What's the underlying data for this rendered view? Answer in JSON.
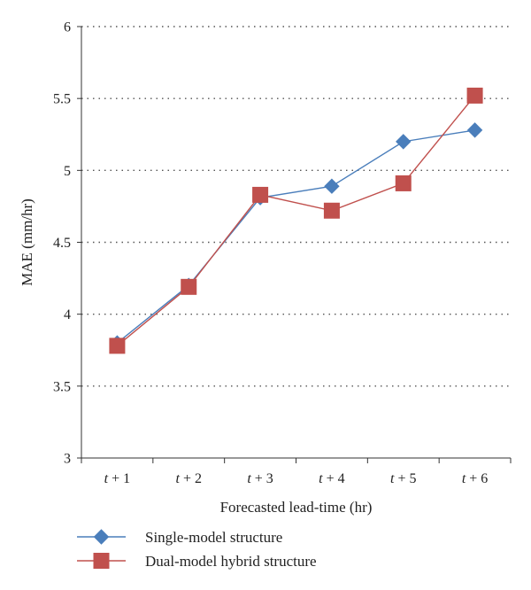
{
  "chart_data": {
    "type": "line",
    "categories": [
      "t + 1",
      "t + 2",
      "t + 3",
      "t + 4",
      "t + 5",
      "t + 6"
    ],
    "xlabel": "Forecasted lead-time (hr)",
    "ylabel": "MAE (mm/hr)",
    "ylim": [
      3,
      6
    ],
    "yticks": [
      "3",
      "3.5",
      "4",
      "4.5",
      "5",
      "5.5",
      "6"
    ],
    "grid": "horizontal dotted",
    "legend": "bottom-left",
    "series": [
      {
        "name": "Single-model structure",
        "marker": "diamond",
        "color": "#4a7ebb",
        "values": [
          3.8,
          4.2,
          4.81,
          4.89,
          5.2,
          5.28
        ]
      },
      {
        "name": "Dual-model hybrid structure",
        "marker": "square",
        "color": "#c0504d",
        "values": [
          3.78,
          4.19,
          4.83,
          4.72,
          4.91,
          5.52
        ]
      }
    ]
  }
}
